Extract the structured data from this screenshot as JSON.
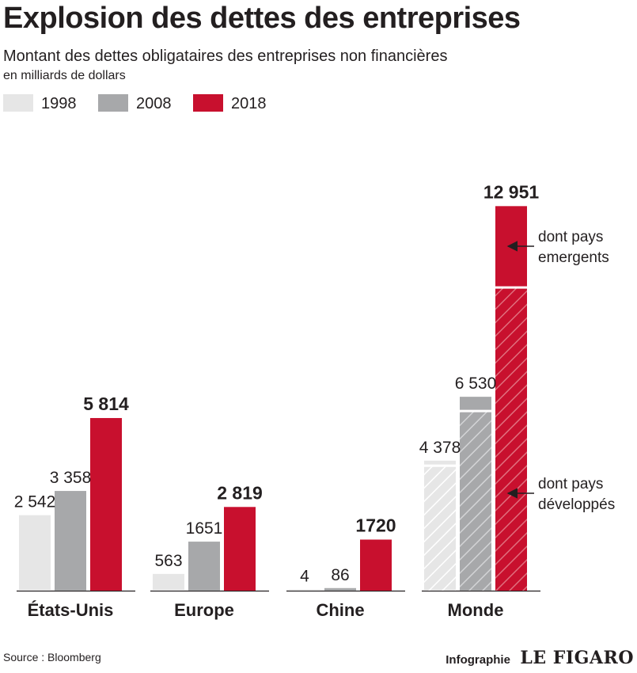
{
  "title": "Explosion des dettes des entreprises",
  "subtitle": "Montant des dettes obligataires des entreprises non financières",
  "unit": "en milliards de dollars",
  "legend": [
    {
      "label": "1998",
      "color": "#e6e6e6"
    },
    {
      "label": "2008",
      "color": "#a7a8aa"
    },
    {
      "label": "2018",
      "color": "#c8102e"
    }
  ],
  "source": "Source : Bloomberg",
  "credit": {
    "label": "Infographie",
    "brand": "LE FIGARO"
  },
  "chart_data": {
    "type": "bar",
    "categories": [
      "États-Unis",
      "Europe",
      "Chine",
      "Monde"
    ],
    "series": [
      {
        "name": "1998",
        "values": [
          2542,
          563,
          4,
          4378
        ],
        "labels": [
          "2 542",
          "563",
          "4",
          "4 378"
        ]
      },
      {
        "name": "2008",
        "values": [
          3358,
          1651,
          86,
          6530
        ],
        "labels": [
          "3 358",
          "1651",
          "86",
          "6 530"
        ]
      },
      {
        "name": "2018",
        "values": [
          5814,
          2819,
          1720,
          12951
        ],
        "labels": [
          "5 814",
          "2 819",
          "1720",
          "12 951"
        ]
      }
    ],
    "world_split_note": "Monde bars split into emerging (solid top) and developed (hatched bottom) segments",
    "world_emerging_approx": [
      130,
      440,
      2700
    ],
    "annotations": [
      {
        "text": [
          "dont pays",
          "emergents"
        ]
      },
      {
        "text": [
          "dont pays",
          "développés"
        ]
      }
    ],
    "ylim": [
      0,
      13000
    ],
    "grid": false,
    "legend_position": "top-left"
  }
}
